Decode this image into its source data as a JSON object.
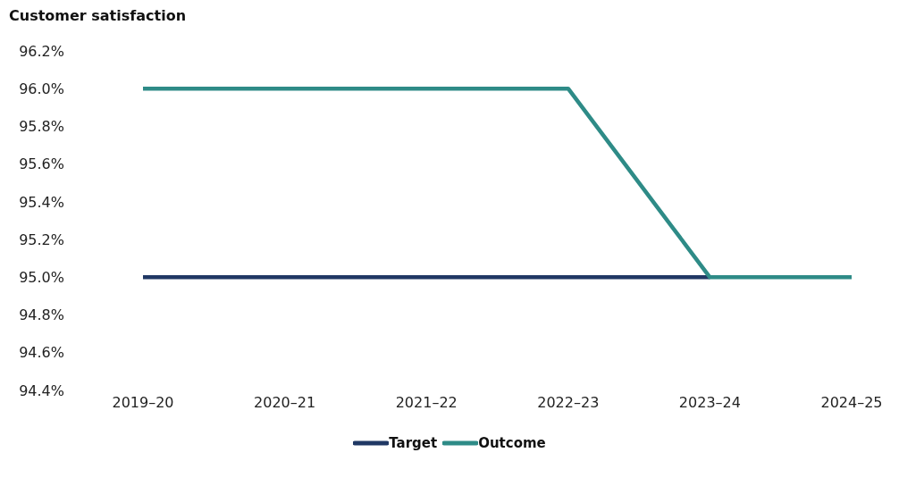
{
  "chart_data": {
    "type": "line",
    "ylabel": "Customer satisfaction",
    "categories": [
      "2019–20",
      "2020–21",
      "2021–22",
      "2022–23",
      "2023–24",
      "2024–25"
    ],
    "series": [
      {
        "name": "Target",
        "color": "#203864",
        "values": [
          95.0,
          95.0,
          95.0,
          95.0,
          95.0,
          null
        ]
      },
      {
        "name": "Outcome",
        "color": "#2e8b87",
        "values": [
          96.0,
          96.0,
          96.0,
          96.0,
          95.0,
          95.0
        ]
      }
    ],
    "ylim": [
      94.4,
      96.2
    ],
    "yticks": [
      {
        "value": 94.4,
        "label": "94.4%"
      },
      {
        "value": 94.6,
        "label": "94.6%"
      },
      {
        "value": 94.8,
        "label": "94.8%"
      },
      {
        "value": 95.0,
        "label": "95.0%"
      },
      {
        "value": 95.2,
        "label": "95.2%"
      },
      {
        "value": 95.4,
        "label": "95.4%"
      },
      {
        "value": 95.6,
        "label": "95.6%"
      },
      {
        "value": 95.8,
        "label": "95.8%"
      },
      {
        "value": 96.0,
        "label": "96.0%"
      },
      {
        "value": 96.2,
        "label": "96.2%"
      }
    ],
    "grid": false,
    "legend": "bottom",
    "marker": "none",
    "line_style": "solid"
  }
}
